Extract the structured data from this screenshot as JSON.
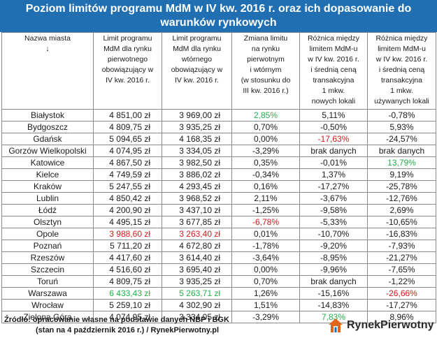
{
  "title": {
    "line1": "Poziom limitów programu MdM w IV kw. 2016 r. oraz ich dopasowanie do",
    "line2": "warunków rynkowych"
  },
  "headers": [
    [
      "Nazwa miasta",
      "↓"
    ],
    [
      "Limit programu",
      "MdM dla rynku",
      "pierwotnego",
      "obowiązujący w",
      "IV kw. 2016 r."
    ],
    [
      "Limit programu",
      "MdM dla rynku",
      "wtórnego",
      "obowiązujący w",
      "IV kw. 2016 r."
    ],
    [
      "Zmiana limitu",
      "na rynku",
      "pierwotnym",
      "i wtórnym",
      "(w stosunku do",
      "III kw. 2016 r.)"
    ],
    [
      "Różnica między",
      "limitem MdM-u",
      "w IV kw. 2016 r.",
      "i średnią ceną",
      "transakcyjna",
      "1 mkw.",
      "nowych lokali"
    ],
    [
      "Różnica między",
      "limitem MdM-u",
      "w IV kw. 2016 r.",
      "i średnią ceną",
      "transakcyjna",
      "1 mkw.",
      "używanych lokali"
    ]
  ],
  "rows": [
    {
      "city": "Białystok",
      "primary": "4 851,00 zł",
      "secondary": "3 969,00 zł",
      "change": "2,85%",
      "diff_new": "5,11%",
      "diff_used": "-0,78%"
    },
    {
      "city": "Bydgoszcz",
      "primary": "4 809,75 zł",
      "secondary": "3 935,25 zł",
      "change": "0,70%",
      "diff_new": "-0,50%",
      "diff_used": "5,93%"
    },
    {
      "city": "Gdańsk",
      "primary": "5 094,65 zł",
      "secondary": "4 168,35 zł",
      "change": "0,00%",
      "diff_new": "-17,63%",
      "diff_used": "-24,57%"
    },
    {
      "city": "Gorzów Wielkopolski",
      "primary": "4 074,95 zł",
      "secondary": "3 334,05 zł",
      "change": "-3,29%",
      "diff_new": "brak danych",
      "diff_used": "brak danych"
    },
    {
      "city": "Katowice",
      "primary": "4 867,50 zł",
      "secondary": "3 982,50 zł",
      "change": "0,35%",
      "diff_new": "-0,01%",
      "diff_used": "13,79%"
    },
    {
      "city": "Kielce",
      "primary": "4 749,59 zł",
      "secondary": "3 886,02 zł",
      "change": "-0,34%",
      "diff_new": "1,37%",
      "diff_used": "9,19%"
    },
    {
      "city": "Kraków",
      "primary": "5 247,55 zł",
      "secondary": "4 293,45 zł",
      "change": "0,16%",
      "diff_new": "-17,27%",
      "diff_used": "-25,78%"
    },
    {
      "city": "Lublin",
      "primary": "4 850,42 zł",
      "secondary": "3 968,52 zł",
      "change": "2,11%",
      "diff_new": "-3,67%",
      "diff_used": "-12,76%"
    },
    {
      "city": "Łódź",
      "primary": "4 200,90 zł",
      "secondary": "3 437,10 zł",
      "change": "-1,25%",
      "diff_new": "-9,58%",
      "diff_used": "2,69%"
    },
    {
      "city": "Olsztyn",
      "primary": "4 495,15 zł",
      "secondary": "3 677,85 zł",
      "change": "-6,78%",
      "diff_new": "-5,33%",
      "diff_used": "-10,65%"
    },
    {
      "city": "Opole",
      "primary": "3 988,60 zł",
      "secondary": "3 263,40 zł",
      "change": "0,01%",
      "diff_new": "-10,70%",
      "diff_used": "-16,83%"
    },
    {
      "city": "Poznań",
      "primary": "5 711,20 zł",
      "secondary": "4 672,80 zł",
      "change": "-1,78%",
      "diff_new": "-9,20%",
      "diff_used": "-7,93%"
    },
    {
      "city": "Rzeszów",
      "primary": "4 417,60 zł",
      "secondary": "3 614,40 zł",
      "change": "-3,64%",
      "diff_new": "-8,95%",
      "diff_used": "-21,27%"
    },
    {
      "city": "Szczecin",
      "primary": "4 516,60 zł",
      "secondary": "3 695,40 zł",
      "change": "0,00%",
      "diff_new": "-9,96%",
      "diff_used": "-7,65%"
    },
    {
      "city": "Toruń",
      "primary": "4 809,75 zł",
      "secondary": "3 935,25 zł",
      "change": "0,70%",
      "diff_new": "brak danych",
      "diff_used": "-1,22%"
    },
    {
      "city": "Warszawa",
      "primary": "6 433,43 zł",
      "secondary": "5 263,71 zł",
      "change": "1,26%",
      "diff_new": "-15,16%",
      "diff_used": "-26,66%"
    },
    {
      "city": "Wrocław",
      "primary": "5 259,10 zł",
      "secondary": "4 302,90 zł",
      "change": "1,51%",
      "diff_new": "-14,83%",
      "diff_used": "-17,27%"
    },
    {
      "city": "Zielona Góra",
      "primary": "4 074,95 zł",
      "secondary": "3 334,05 zł",
      "change": "-3,29%",
      "diff_new": "7,83%",
      "diff_used": "8,96%"
    }
  ],
  "highlights": {
    "0": {
      "change": "green"
    },
    "2": {
      "diff_new": "red"
    },
    "4": {
      "diff_used": "green"
    },
    "9": {
      "change": "red"
    },
    "10": {
      "primary": "red",
      "secondary": "red"
    },
    "15": {
      "primary": "green",
      "secondary": "green",
      "diff_used": "red"
    },
    "17": {
      "diff_new": "green"
    }
  },
  "colors": {
    "header_bg": "#1f6fb2",
    "green": "#1fb14a",
    "red": "#d3171b"
  },
  "source": {
    "line1": "Źródło: opracowanie własne na podstawie danych NBP i BGK",
    "line2": "(stan na 4 październik 2016 r.) / RynekPierwotny.pl"
  },
  "logo": {
    "icon": "house-logo-icon",
    "brand": "RynekPierwotny"
  }
}
